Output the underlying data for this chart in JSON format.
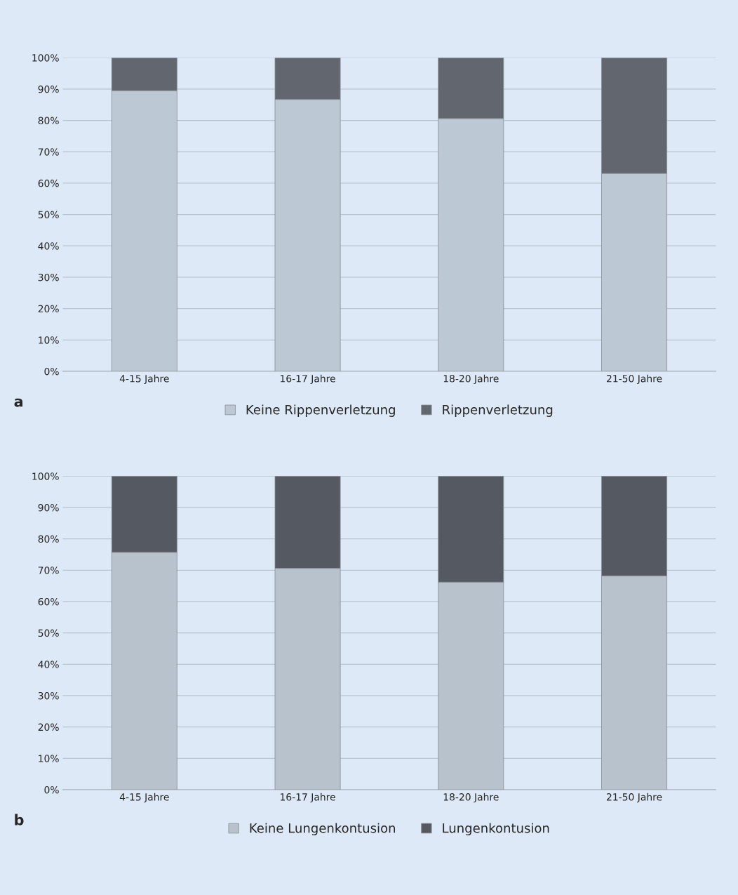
{
  "chart_data": [
    {
      "type": "bar",
      "stacked": true,
      "categories": [
        "4-15 Jahre",
        "16-17 Jahre",
        "18-20 Jahre",
        "21-50 Jahre"
      ],
      "series": [
        {
          "name": "Keine Rippenverletzung",
          "color": "#bcc8d4",
          "values": [
            89.5,
            86.7,
            80.6,
            63.1
          ]
        },
        {
          "name": "Rippenverletzung",
          "color": "#62666e",
          "values": [
            10.5,
            13.3,
            19.4,
            36.9
          ]
        }
      ],
      "ylim": [
        0,
        100
      ],
      "yticks": [
        {
          "value": 0,
          "label": "0%"
        },
        {
          "value": 10,
          "label": "10%"
        },
        {
          "value": 20,
          "label": "20%"
        },
        {
          "value": 30,
          "label": "30%"
        },
        {
          "value": 40,
          "label": "40%"
        },
        {
          "value": 50,
          "label": "50%"
        },
        {
          "value": 60,
          "label": "60%"
        },
        {
          "value": 70,
          "label": "70%"
        },
        {
          "value": 80,
          "label": "80%"
        },
        {
          "value": 90,
          "label": "90%"
        },
        {
          "value": 100,
          "label": "100%"
        }
      ],
      "grid": "y",
      "legend": "bottom",
      "annotations": [
        "a"
      ]
    },
    {
      "type": "bar",
      "stacked": true,
      "categories": [
        "4-15 Jahre",
        "16-17 Jahre",
        "18-20 Jahre",
        "21-50 Jahre"
      ],
      "series": [
        {
          "name": "Keine Lungenkontusion",
          "color": "#b8c2cc",
          "values": [
            75.7,
            70.6,
            66.2,
            68.2
          ]
        },
        {
          "name": "Lungenkontusion",
          "color": "#555a62",
          "values": [
            24.3,
            29.4,
            33.8,
            31.8
          ]
        }
      ],
      "ylim": [
        0,
        100
      ],
      "yticks": [
        {
          "value": 0,
          "label": "0%"
        },
        {
          "value": 10,
          "label": "10%"
        },
        {
          "value": 20,
          "label": "20%"
        },
        {
          "value": 30,
          "label": "30%"
        },
        {
          "value": 40,
          "label": "40%"
        },
        {
          "value": 50,
          "label": "50%"
        },
        {
          "value": 60,
          "label": "60%"
        },
        {
          "value": 70,
          "label": "70%"
        },
        {
          "value": 80,
          "label": "80%"
        },
        {
          "value": 90,
          "label": "90%"
        },
        {
          "value": 100,
          "label": "100%"
        }
      ],
      "grid": "y",
      "legend": "bottom",
      "annotations": [
        "b"
      ]
    }
  ]
}
